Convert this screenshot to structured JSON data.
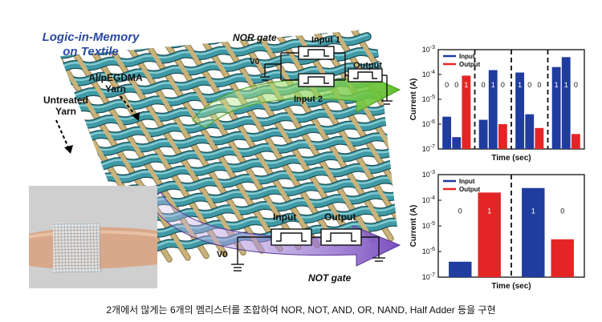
{
  "title_line1": "Logic-in-Memory",
  "title_line2": "on Textile",
  "labels": {
    "untreated": [
      "Untreated",
      "Yarn"
    ],
    "al_yarn": [
      "Al/pEGDMA",
      "Yarn"
    ],
    "nor_gate": "NOR gate",
    "not_gate": "NOT gate",
    "input1": "Input 1",
    "input2": "Input 2",
    "output": "Output",
    "input": "Input",
    "v0": "V0"
  },
  "colors": {
    "blue": "#1f3c9e",
    "red": "#e52525",
    "green_arrow": "#7fce4c",
    "purple_arrow": "#8a64c8",
    "yarn_teal": "#3f9aa5",
    "yarn_tan": "#c9b27a"
  },
  "caption": "2개에서 많게는 6개의 멤리스터를 조합하여 NOR, NOT, AND, OR, NAND, Half Adder 등을 구현",
  "chart_data": [
    {
      "type": "bar",
      "ylabel": "Current (A)",
      "xlabel": "Time (sec)",
      "yscale": "log",
      "ylim": [
        1e-07,
        0.001
      ],
      "yticks": [
        "10^-3",
        "10^-4",
        "10^-5",
        "10^-6",
        "10^-7"
      ],
      "legend": [
        "Input",
        "Output"
      ],
      "legend_position": "top-left",
      "groups": [
        {
          "bars": [
            {
              "series": "Input",
              "value": 2e-06,
              "digit": "0"
            },
            {
              "series": "Input",
              "value": 3e-07,
              "digit": "0"
            },
            {
              "series": "Output",
              "value": 9e-05,
              "digit": "1"
            }
          ]
        },
        {
          "bars": [
            {
              "series": "Input",
              "value": 1.5e-06,
              "digit": "0"
            },
            {
              "series": "Input",
              "value": 0.00015,
              "digit": "1"
            },
            {
              "series": "Output",
              "value": 1e-06,
              "digit": "0"
            }
          ]
        },
        {
          "bars": [
            {
              "series": "Input",
              "value": 0.00012,
              "digit": "1"
            },
            {
              "series": "Input",
              "value": 2.5e-06,
              "digit": "0"
            },
            {
              "series": "Output",
              "value": 7e-07,
              "digit": "0"
            }
          ]
        },
        {
          "bars": [
            {
              "series": "Input",
              "value": 0.0002,
              "digit": "1"
            },
            {
              "series": "Input",
              "value": 0.0005,
              "digit": "1"
            },
            {
              "series": "Output",
              "value": 4e-07,
              "digit": "0"
            }
          ]
        }
      ]
    },
    {
      "type": "bar",
      "ylabel": "Current (A)",
      "xlabel": "Time (sec)",
      "yscale": "log",
      "ylim": [
        1e-07,
        0.001
      ],
      "yticks": [
        "10^-3",
        "10^-4",
        "10^-5",
        "10^-6",
        "10^-7"
      ],
      "legend": [
        "Input",
        "Output"
      ],
      "legend_position": "top-left",
      "groups": [
        {
          "bars": [
            {
              "series": "Input",
              "value": 4e-07,
              "digit": "0"
            },
            {
              "series": "Output",
              "value": 0.0002,
              "digit": "1"
            }
          ]
        },
        {
          "bars": [
            {
              "series": "Input",
              "value": 0.0003,
              "digit": "1"
            },
            {
              "series": "Output",
              "value": 3e-06,
              "digit": "0"
            }
          ]
        }
      ]
    }
  ]
}
